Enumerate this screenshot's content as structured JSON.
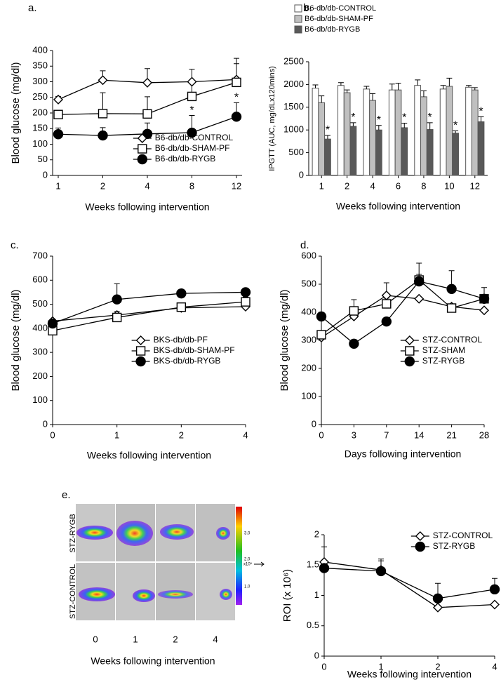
{
  "chart_data": [
    {
      "type": "line",
      "panel": "a.",
      "ylabel": "Blood glucose (mg/dl)",
      "xlabel": "Weeks following intervention",
      "categories": [
        "1",
        "2",
        "4",
        "8",
        "12"
      ],
      "ylim": [
        0,
        400
      ],
      "yticks": [
        0,
        50,
        100,
        150,
        200,
        250,
        300,
        350,
        400
      ],
      "legend": "lower right",
      "series": [
        {
          "name": "B6-db/db-CONTROL",
          "color": "#000000",
          "marker": "diamond",
          "filled": false,
          "values": [
            243,
            305,
            297,
            300,
            307
          ],
          "errors": [
            10,
            30,
            45,
            40,
            68
          ]
        },
        {
          "name": "B6-db/db-SHAM-PF",
          "color": "#000000",
          "marker": "square",
          "filled": false,
          "values": [
            195,
            198,
            197,
            253,
            298
          ],
          "errors": [
            10,
            67,
            55,
            45,
            60
          ]
        },
        {
          "name": "B6-db/db-RYGB",
          "color": "#000000",
          "marker": "circle",
          "filled": true,
          "values": [
            132,
            128,
            133,
            137,
            188
          ],
          "errors": [
            20,
            25,
            35,
            55,
            45
          ],
          "significance": [
            null,
            null,
            null,
            "*",
            "*"
          ]
        }
      ]
    },
    {
      "type": "bar",
      "panel": "b.",
      "ylabel": "IPGTT (AUC, mg/dLx120mins)",
      "xlabel": "Weeks following intervention",
      "categories": [
        "1",
        "2",
        "4",
        "6",
        "8",
        "10",
        "12"
      ],
      "ylim": [
        0,
        2500
      ],
      "yticks": [
        0,
        500,
        1000,
        1500,
        2000,
        2500
      ],
      "legend": "above",
      "series": [
        {
          "name": "B6-db/db-CONTROL",
          "color": "#ffffff",
          "values": [
            1920,
            1980,
            1900,
            1880,
            1980,
            1900,
            1940
          ],
          "errors": [
            70,
            60,
            60,
            130,
            120,
            80,
            40
          ]
        },
        {
          "name": "B6-db/db-SHAM-PF",
          "color": "#c0c0c0",
          "values": [
            1600,
            1820,
            1650,
            1880,
            1730,
            1960,
            1880
          ],
          "errors": [
            150,
            60,
            150,
            150,
            130,
            180,
            50
          ]
        },
        {
          "name": "B6-db/db-RYGB",
          "color": "#595959",
          "values": [
            800,
            1080,
            1000,
            1050,
            1010,
            930,
            1180
          ],
          "errors": [
            80,
            80,
            100,
            100,
            150,
            50,
            110
          ],
          "significance": [
            "*",
            "*",
            "*",
            "*",
            "*",
            "*",
            "*"
          ]
        }
      ]
    },
    {
      "type": "line",
      "panel": "c.",
      "ylabel": "Blood glucose (mg/dl)",
      "xlabel": "Weeks following intervention",
      "categories": [
        "0",
        "1",
        "2",
        "4"
      ],
      "ylim": [
        0,
        700
      ],
      "yticks": [
        0,
        100,
        200,
        300,
        400,
        500,
        600,
        700
      ],
      "legend": "center right",
      "series": [
        {
          "name": "BKS-db/db-PF",
          "color": "#000000",
          "marker": "diamond",
          "filled": false,
          "values": [
            430,
            455,
            485,
            490
          ],
          "errors": [
            5,
            15,
            10,
            10
          ]
        },
        {
          "name": "BKS-db/db-SHAM-PF",
          "color": "#000000",
          "marker": "square",
          "filled": false,
          "values": [
            390,
            445,
            488,
            510
          ],
          "errors": [
            20,
            15,
            10,
            20
          ]
        },
        {
          "name": "BKS-db/db-RYGB",
          "color": "#000000",
          "marker": "circle",
          "filled": true,
          "values": [
            420,
            520,
            545,
            550
          ],
          "errors": [
            5,
            65,
            10,
            10
          ]
        }
      ]
    },
    {
      "type": "line",
      "panel": "d.",
      "ylabel": "Blood glucose (mg/dl)",
      "xlabel": "Days following intervention",
      "categories": [
        "0",
        "3",
        "7",
        "14",
        "21",
        "28"
      ],
      "ylim": [
        0,
        600
      ],
      "yticks": [
        0,
        100,
        200,
        300,
        400,
        500,
        600
      ],
      "legend": "center right",
      "series": [
        {
          "name": "STZ-CONTROL",
          "color": "#000000",
          "marker": "diamond",
          "filled": false,
          "values": [
            310,
            385,
            460,
            448,
            420,
            407
          ],
          "errors": [
            10,
            20,
            45,
            0,
            0,
            0
          ]
        },
        {
          "name": "STZ-SHAM",
          "color": "#000000",
          "marker": "square",
          "filled": false,
          "values": [
            320,
            405,
            430,
            515,
            415,
            448
          ],
          "errors": [
            15,
            40,
            20,
            60,
            0,
            40
          ]
        },
        {
          "name": "STZ-RYGB",
          "color": "#000000",
          "marker": "circle",
          "filled": true,
          "values": [
            385,
            288,
            367,
            510,
            483,
            448
          ],
          "errors": [
            0,
            0,
            0,
            25,
            65,
            0
          ]
        }
      ]
    },
    {
      "type": "line",
      "panel": "e.",
      "ylabel": "ROI (x 10⁶)",
      "xlabel": "Weeks following intervention",
      "categories": [
        "0",
        "1",
        "2",
        "4"
      ],
      "ylim": [
        0,
        2
      ],
      "yticks": [
        0,
        0.5,
        1,
        1.5,
        2
      ],
      "legend": "upper right",
      "series": [
        {
          "name": "STZ-CONTROL",
          "color": "#000000",
          "marker": "diamond",
          "filled": false,
          "values": [
            1.55,
            1.42,
            0.8,
            0.85
          ],
          "errors": [
            0.25,
            0.15,
            0,
            0
          ]
        },
        {
          "name": "STZ-RYGB",
          "color": "#000000",
          "marker": "circle",
          "filled": true,
          "values": [
            1.45,
            1.4,
            0.95,
            1.1
          ],
          "errors": [
            0,
            0.2,
            0.25,
            0.18
          ]
        }
      ]
    }
  ],
  "image_panel": {
    "rows": [
      "STZ-RYGB",
      "STZ-CONTROL"
    ],
    "columns": [
      "0",
      "1",
      "2",
      "4"
    ],
    "xlabel": "Weeks following intervention",
    "scale_labels": [
      "3.0",
      "2.0",
      "1.0"
    ],
    "scale_unit": "x10⁵"
  }
}
